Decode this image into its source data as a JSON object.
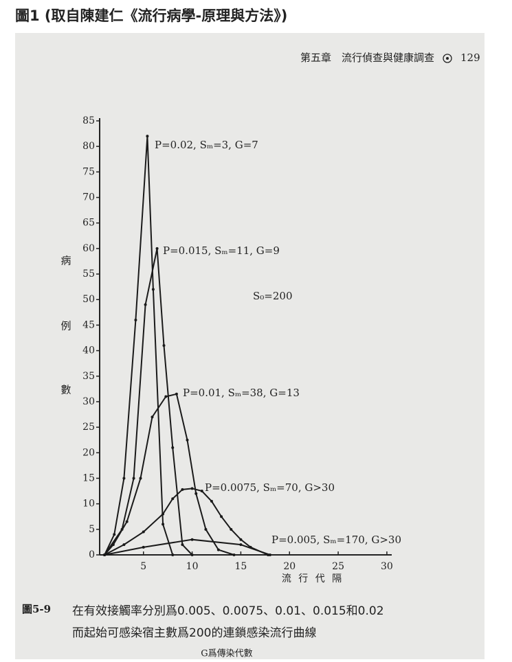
{
  "page_title": "圖1 (取自陳建仁《流行病學-原理與方法》)",
  "header": {
    "chapter": "第五章　流行偵查與健康調查",
    "page": "129"
  },
  "chart_data": {
    "type": "line",
    "y_label": [
      "病",
      "例",
      "數"
    ],
    "x_label": "流 行 代 隔",
    "annotation": "S₀=200",
    "xlim": [
      0.5,
      30.5
    ],
    "xticks": [
      5,
      10,
      15,
      20,
      25,
      30
    ],
    "ylim": [
      0,
      85
    ],
    "yticks": [
      0,
      5,
      10,
      15,
      20,
      25,
      30,
      35,
      40,
      45,
      50,
      55,
      60,
      65,
      70,
      75,
      80,
      85
    ],
    "series": [
      {
        "name": "P=0.02, Sₘ=3, G=7",
        "color": "#1a1a1a",
        "x": [
          1,
          2,
          3,
          4.2,
          5.4,
          6,
          7,
          8
        ],
        "values": [
          0,
          4,
          15,
          46,
          82,
          52,
          6,
          0
        ]
      },
      {
        "name": "P=0.015, Sₘ=11, G=9",
        "color": "#1a1a1a",
        "x": [
          1,
          2.8,
          4,
          5.2,
          6.4,
          7.1,
          8,
          9,
          10
        ],
        "values": [
          0,
          5,
          15,
          49,
          60,
          41,
          21,
          2,
          0
        ]
      },
      {
        "name": "P=0.01, Sₘ=38, G=13",
        "color": "#1a1a1a",
        "x": [
          1,
          1.9,
          3.3,
          4.7,
          5.9,
          7.3,
          8.4,
          9.5,
          10.4,
          11.4,
          12.7,
          14.3
        ],
        "values": [
          0,
          2,
          6.5,
          15,
          27,
          31,
          31.5,
          22.5,
          12,
          5,
          1,
          0
        ]
      },
      {
        "name": "P=0.0075, Sₘ=70, G>30",
        "color": "#1a1a1a",
        "x": [
          1,
          3,
          5,
          7,
          8,
          9,
          10,
          11,
          12,
          13,
          14,
          15,
          16,
          17.8
        ],
        "values": [
          0,
          2,
          4.5,
          8,
          11,
          12.8,
          13,
          12.5,
          10.5,
          7.5,
          5,
          3,
          1.5,
          0
        ]
      },
      {
        "name": "P=0.005, Sₘ=170, G>30",
        "color": "#1a1a1a",
        "x": [
          1,
          5,
          10,
          15,
          18
        ],
        "values": [
          0,
          1.5,
          3,
          2,
          0
        ]
      }
    ]
  },
  "caption": {
    "label": "圖5-9",
    "line1": "在有效接觸率分別爲0.005、0.0075、0.01、0.015和0.02",
    "line2": "而起始可感染宿主數爲200的連鎖感染流行曲線",
    "note": "G爲傳染代數"
  }
}
